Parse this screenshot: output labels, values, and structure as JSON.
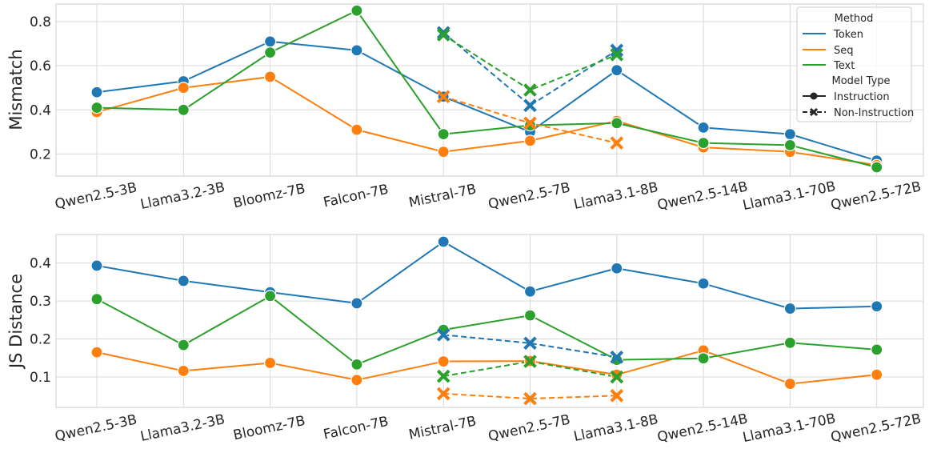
{
  "chart_data": [
    {
      "type": "line",
      "ylabel": "Mismatch",
      "xlabel": "",
      "ylim": [
        0.1,
        0.88
      ],
      "yticks": [
        0.2,
        0.4,
        0.6,
        0.8
      ],
      "ytick_labels": [
        "0.2",
        "0.4",
        "0.6",
        "0.8"
      ],
      "categories": [
        "Qwen2.5-3B",
        "Llama3.2-3B",
        "Bloomz-7B",
        "Falcon-7B",
        "Mistral-7B",
        "Qwen2.5-7B",
        "Llama3.1-8B",
        "Qwen2.5-14B",
        "Llama3.1-70B",
        "Qwen2.5-72B"
      ],
      "grid": true,
      "legend": {
        "placement": "top-right",
        "title1": "Method",
        "methods": [
          "Token",
          "Seq",
          "Text"
        ],
        "title2": "Model Type",
        "types": [
          "Instruction",
          "Non-Instruction"
        ]
      },
      "series": [
        {
          "name": "Token",
          "type": "Instruction",
          "color": "#1f77b4",
          "values": [
            0.48,
            0.53,
            0.71,
            0.67,
            0.46,
            0.3,
            0.58,
            0.32,
            0.29,
            0.17
          ]
        },
        {
          "name": "Seq",
          "type": "Instruction",
          "color": "#ff7f0e",
          "values": [
            0.39,
            0.5,
            0.55,
            0.31,
            0.21,
            0.26,
            0.35,
            0.23,
            0.21,
            0.15
          ]
        },
        {
          "name": "Text",
          "type": "Instruction",
          "color": "#2ca02c",
          "values": [
            0.41,
            0.4,
            0.66,
            0.85,
            0.29,
            0.33,
            0.34,
            0.25,
            0.24,
            0.14
          ]
        },
        {
          "name": "Token",
          "type": "Non-Instruction",
          "color": "#1f77b4",
          "values": [
            null,
            null,
            null,
            null,
            0.75,
            0.42,
            0.67,
            null,
            null,
            null
          ]
        },
        {
          "name": "Seq",
          "type": "Non-Instruction",
          "color": "#ff7f0e",
          "values": [
            null,
            null,
            null,
            null,
            0.46,
            0.34,
            0.25,
            null,
            null,
            null
          ]
        },
        {
          "name": "Text",
          "type": "Non-Instruction",
          "color": "#2ca02c",
          "values": [
            null,
            null,
            null,
            null,
            0.74,
            0.49,
            0.65,
            null,
            null,
            null
          ]
        }
      ]
    },
    {
      "type": "line",
      "ylabel": "JS Distance",
      "xlabel": "",
      "ylim": [
        0.02,
        0.475
      ],
      "yticks": [
        0.1,
        0.2,
        0.3,
        0.4
      ],
      "ytick_labels": [
        "0.1",
        "0.2",
        "0.3",
        "0.4"
      ],
      "categories": [
        "Qwen2.5-3B",
        "Llama3.2-3B",
        "Bloomz-7B",
        "Falcon-7B",
        "Mistral-7B",
        "Qwen2.5-7B",
        "Llama3.1-8B",
        "Qwen2.5-14B",
        "Llama3.1-70B",
        "Qwen2.5-72B"
      ],
      "grid": true,
      "series": [
        {
          "name": "Token",
          "type": "Instruction",
          "color": "#1f77b4",
          "values": [
            0.393,
            0.353,
            0.323,
            0.294,
            0.456,
            0.325,
            0.386,
            0.346,
            0.28,
            0.286
          ]
        },
        {
          "name": "Seq",
          "type": "Instruction",
          "color": "#ff7f0e",
          "values": [
            0.165,
            0.116,
            0.137,
            0.092,
            0.141,
            0.142,
            0.106,
            0.17,
            0.082,
            0.106
          ]
        },
        {
          "name": "Text",
          "type": "Instruction",
          "color": "#2ca02c",
          "values": [
            0.305,
            0.184,
            0.313,
            0.133,
            0.224,
            0.262,
            0.145,
            0.149,
            0.19,
            0.172
          ]
        },
        {
          "name": "Token",
          "type": "Non-Instruction",
          "color": "#1f77b4",
          "values": [
            null,
            null,
            null,
            null,
            0.211,
            0.189,
            0.152,
            null,
            null,
            null
          ]
        },
        {
          "name": "Seq",
          "type": "Non-Instruction",
          "color": "#ff7f0e",
          "values": [
            null,
            null,
            null,
            null,
            0.056,
            0.043,
            0.051,
            null,
            null,
            null
          ]
        },
        {
          "name": "Text",
          "type": "Non-Instruction",
          "color": "#2ca02c",
          "values": [
            null,
            null,
            null,
            null,
            0.102,
            0.141,
            0.1,
            null,
            null,
            null
          ]
        }
      ]
    }
  ]
}
